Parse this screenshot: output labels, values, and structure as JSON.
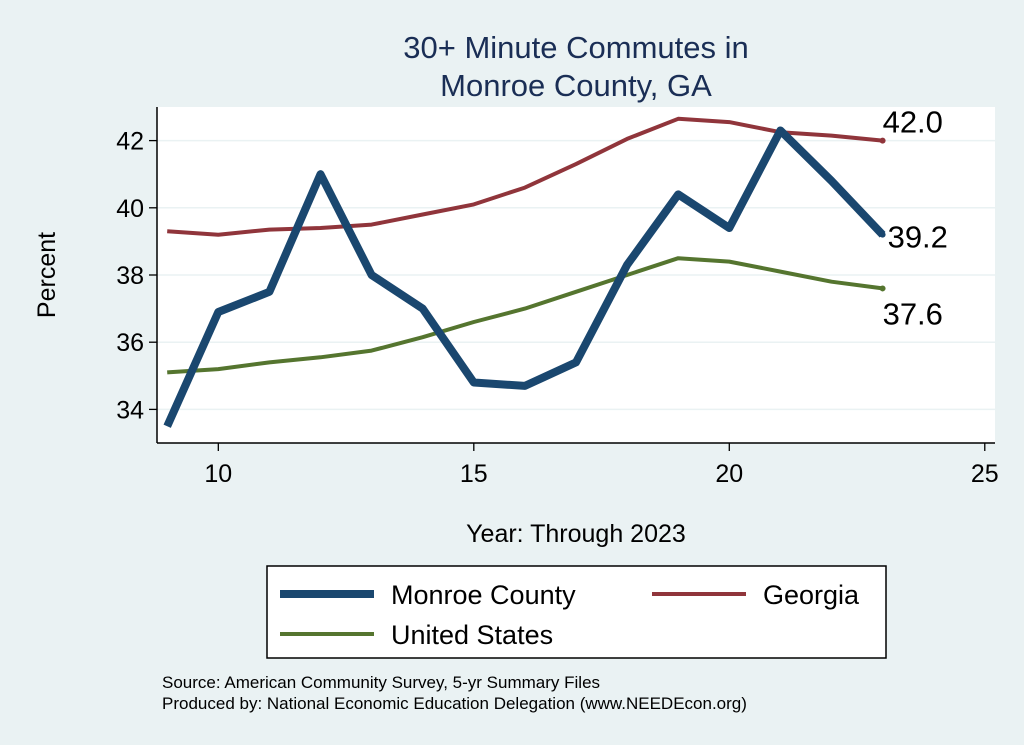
{
  "chart_data": {
    "type": "line",
    "title": [
      "30+ Minute Commutes in",
      "Monroe County, GA"
    ],
    "xlabel": "Year: Through 2023",
    "ylabel": "Percent",
    "xlim": [
      8.8,
      25.2
    ],
    "ylim": [
      33,
      43
    ],
    "xticks": [
      10,
      15,
      20,
      25
    ],
    "yticks": [
      34,
      36,
      38,
      40,
      42
    ],
    "grid": "horizontal",
    "legend_position": "bottom",
    "series": [
      {
        "name": "Monroe County",
        "color": "#1a476f",
        "x": [
          9,
          10,
          11,
          12,
          13,
          14,
          15,
          16,
          17,
          18,
          19,
          20,
          21,
          22,
          23
        ],
        "y": [
          33.5,
          36.9,
          37.5,
          41.0,
          38.0,
          37.0,
          34.8,
          34.7,
          35.4,
          38.3,
          40.4,
          39.4,
          42.3,
          40.8,
          39.2
        ],
        "end_label": "39.2"
      },
      {
        "name": "Georgia",
        "color": "#90353b",
        "x": [
          9,
          10,
          11,
          12,
          13,
          14,
          15,
          16,
          17,
          18,
          19,
          20,
          21,
          22,
          23
        ],
        "y": [
          39.3,
          39.2,
          39.35,
          39.4,
          39.5,
          39.8,
          40.1,
          40.6,
          41.3,
          42.05,
          42.65,
          42.55,
          42.25,
          42.15,
          42.0
        ],
        "end_label": "42.0"
      },
      {
        "name": "United States",
        "color": "#55752f",
        "x": [
          9,
          10,
          11,
          12,
          13,
          14,
          15,
          16,
          17,
          18,
          19,
          20,
          21,
          22,
          23
        ],
        "y": [
          35.1,
          35.2,
          35.4,
          35.55,
          35.75,
          36.15,
          36.6,
          37.0,
          37.5,
          38.0,
          38.5,
          38.4,
          38.1,
          37.8,
          37.6
        ],
        "end_label": "37.6"
      }
    ]
  },
  "footer": {
    "source": "Source: American Community Survey, 5-yr Summary Files",
    "producer": "Produced by: National Economic Education Delegation (www.NEEDEcon.org)"
  }
}
